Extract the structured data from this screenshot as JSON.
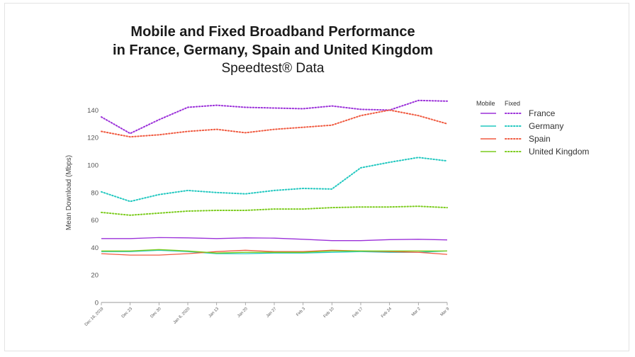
{
  "chart_data": {
    "type": "line",
    "title": "Mobile and Fixed Broadband Performance",
    "title_line2": "in France, Germany, Spain and United Kingdom",
    "subtitle": "Speedtest® Data",
    "xlabel": "",
    "ylabel": "Mean Download (Mbps)",
    "ylim": [
      0,
      150
    ],
    "yticks": [
      0,
      20,
      40,
      60,
      80,
      100,
      120,
      140
    ],
    "grid": false,
    "legend_position": "right",
    "legend_headers": {
      "mobile": "Mobile",
      "fixed": "Fixed"
    },
    "categories": [
      "Dec 16, 2019",
      "Dec 23",
      "Dec 30",
      "Jan 6, 2020",
      "Jan 13",
      "Jan 20",
      "Jan 27",
      "Feb 3",
      "Feb 10",
      "Feb 17",
      "Feb 24",
      "Mar 2",
      "Mar 9"
    ],
    "countries": [
      {
        "name": "France",
        "color": "#9b30d9",
        "mobile": [
          46.5,
          46.5,
          47.2,
          47,
          46.5,
          47,
          46.8,
          46,
          45,
          45,
          45.7,
          46,
          45.5
        ],
        "fixed": [
          135,
          123,
          133,
          142,
          143.5,
          142,
          141.5,
          141,
          143,
          140.5,
          140,
          147,
          146.5
        ]
      },
      {
        "name": "Germany",
        "color": "#22c8c0",
        "mobile": [
          37,
          37,
          38,
          37,
          35.5,
          35.5,
          36,
          36,
          36.5,
          37,
          36.5,
          36.5,
          37.5
        ],
        "fixed": [
          80.5,
          73.5,
          78.5,
          81.5,
          80,
          79,
          81.5,
          83,
          82.5,
          98,
          102,
          105.5,
          103
        ]
      },
      {
        "name": "Spain",
        "color": "#f05a40",
        "mobile": [
          35.5,
          34.5,
          34.5,
          35.5,
          37,
          38,
          37,
          37,
          38,
          37.5,
          37,
          36.5,
          35
        ],
        "fixed": [
          124.5,
          120.5,
          122,
          124.5,
          126,
          123.5,
          126,
          127.5,
          129,
          136,
          140,
          136,
          130
        ]
      },
      {
        "name": "United Kingdom",
        "color": "#7ccc1e",
        "mobile": [
          37.5,
          37.5,
          38.5,
          37.5,
          36,
          36.5,
          36.5,
          36.5,
          37.5,
          37.5,
          37.5,
          37.5,
          37.5
        ],
        "fixed": [
          65.5,
          63.5,
          65,
          66.5,
          67,
          67,
          68,
          68,
          69,
          69.5,
          69.5,
          70,
          69
        ]
      }
    ]
  }
}
